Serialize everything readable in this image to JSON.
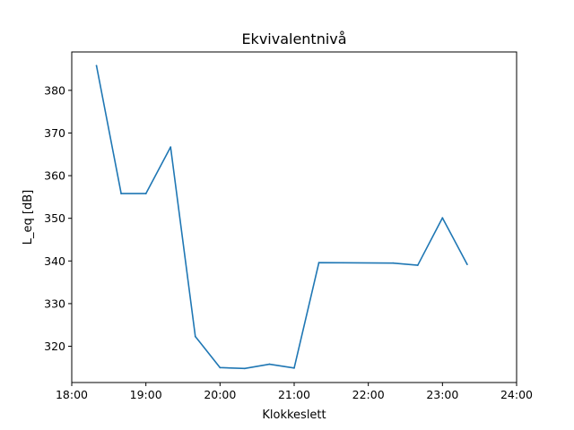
{
  "chart_data": {
    "type": "line",
    "title": "Ekvivalentnivå",
    "xlabel": "Klokkeslett",
    "ylabel": "L_eq [dB]",
    "x_ticks": [
      "18:00",
      "19:00",
      "20:00",
      "21:00",
      "22:00",
      "23:00",
      "24:00"
    ],
    "y_ticks": [
      320,
      330,
      340,
      350,
      360,
      370,
      380
    ],
    "xlim": [
      "18:00",
      "24:00"
    ],
    "ylim": [
      311.5,
      389.0
    ],
    "grid": false,
    "series": [
      {
        "color": "#1f77b4",
        "x": [
          "18:20",
          "18:40",
          "19:00",
          "19:20",
          "19:40",
          "20:00",
          "20:20",
          "20:40",
          "21:00",
          "21:20",
          "22:20",
          "22:40",
          "23:00",
          "23:20"
        ],
        "values": [
          385.8,
          355.8,
          355.8,
          366.7,
          322.3,
          315.0,
          314.8,
          315.8,
          314.9,
          339.6,
          339.5,
          339.0,
          350.1,
          339.2
        ]
      }
    ]
  }
}
